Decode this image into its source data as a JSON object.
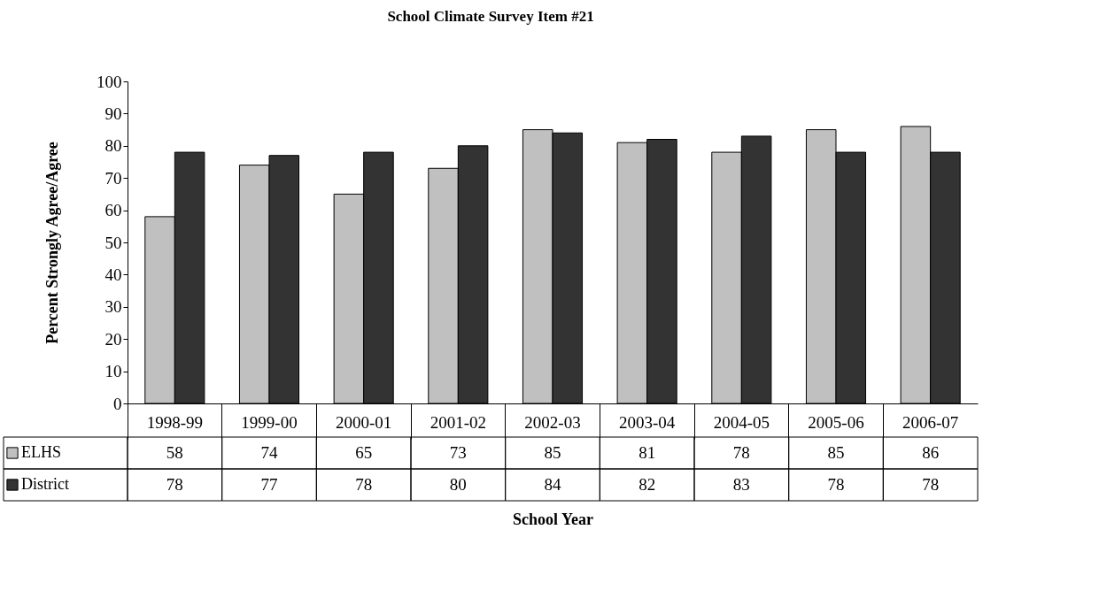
{
  "chart_data": {
    "type": "bar",
    "title": "School Climate Survey Item #21",
    "xlabel": "School Year",
    "ylabel": "Percent Strongly Agree/Agree",
    "categories": [
      "1998-99",
      "1999-00",
      "2000-01",
      "2001-02",
      "2002-03",
      "2003-04",
      "2004-05",
      "2005-06",
      "2006-07"
    ],
    "series": [
      {
        "name": "ELHS",
        "color": "#c0c0c0",
        "values": [
          58,
          74,
          65,
          73,
          85,
          81,
          78,
          85,
          86
        ]
      },
      {
        "name": "District",
        "color": "#333333",
        "values": [
          78,
          77,
          78,
          80,
          84,
          82,
          83,
          78,
          78
        ]
      }
    ],
    "ylim": [
      0,
      100
    ],
    "yticks": [
      0,
      10,
      20,
      30,
      40,
      50,
      60,
      70,
      80,
      90,
      100
    ],
    "grid": false,
    "legend": "bottom left",
    "data_labels": true
  }
}
